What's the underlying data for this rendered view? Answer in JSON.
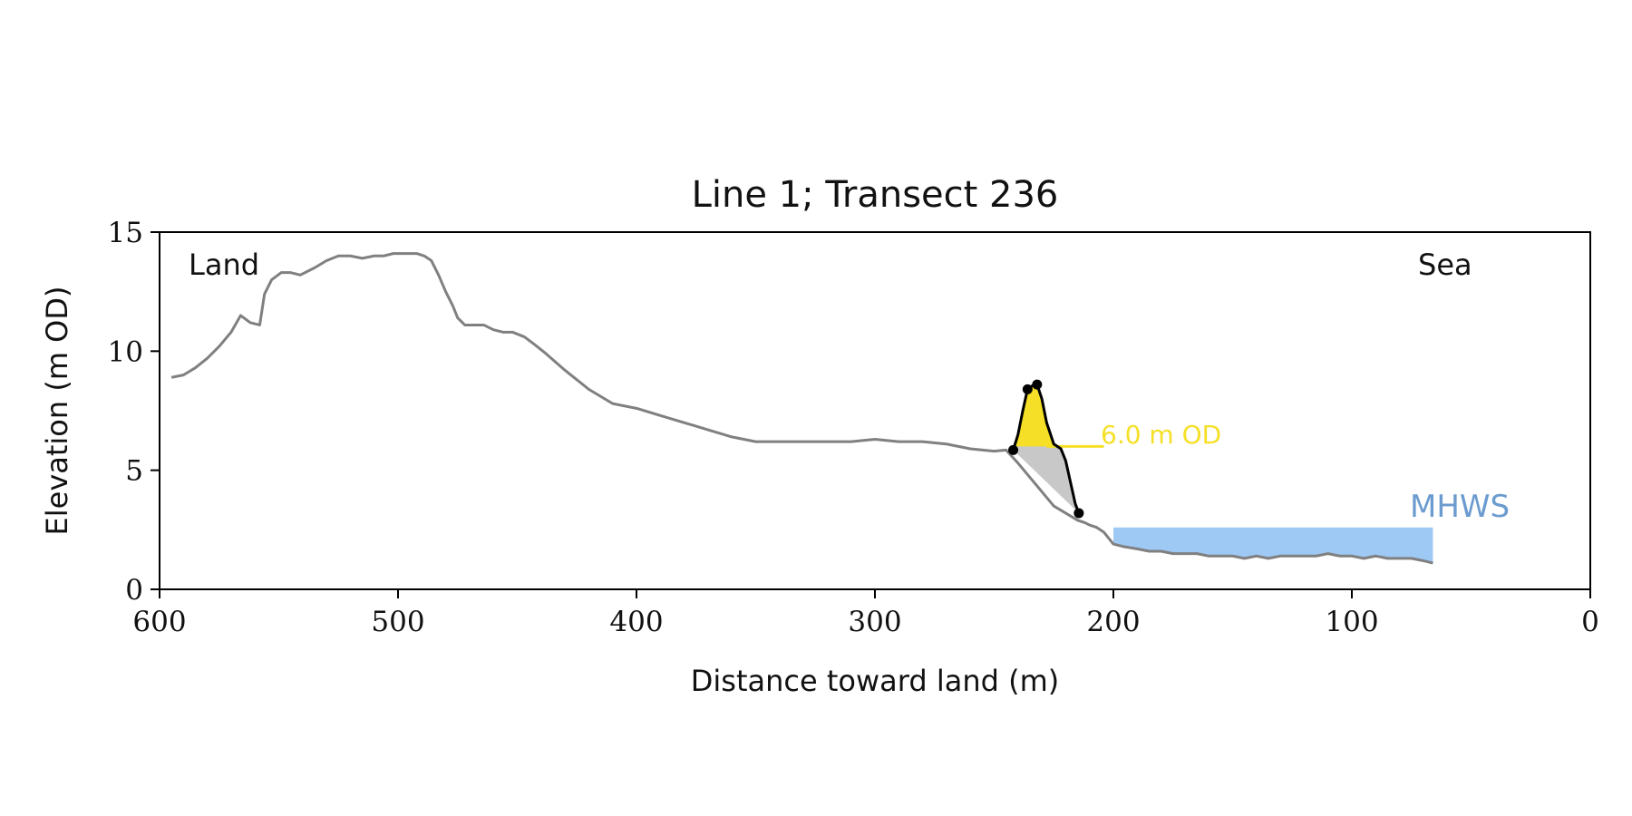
{
  "chart_data": {
    "type": "line",
    "title": "Line 1; Transect 236",
    "xlabel": "Distance toward land (m)",
    "ylabel": "Elevation (m OD)",
    "xlim": [
      600,
      0
    ],
    "ylim": [
      0,
      15
    ],
    "x_ticks": [
      "600",
      "500",
      "400",
      "300",
      "200",
      "100",
      "0"
    ],
    "y_ticks": [
      "0",
      "5",
      "10",
      "15"
    ],
    "x_tick_values": [
      600,
      500,
      400,
      300,
      200,
      100,
      0
    ],
    "y_tick_values": [
      0,
      5,
      10,
      15
    ],
    "grid": false,
    "colors": {
      "profile": "#808080",
      "dune": "#f5e027",
      "dune_base": "#c8c8c8",
      "mhws": "#9ec9f5",
      "mhws_text": "#6b9bcf",
      "od_line": "#f5e027",
      "markers": "#000000"
    },
    "annotations": {
      "land": "Land",
      "sea": "Sea",
      "od_label": "6.0 m OD",
      "mhws_label": "MHWS"
    },
    "threshold": {
      "elevation": 6.0,
      "x_start": 228,
      "x_end": 204
    },
    "mhws": {
      "elevation": 2.6,
      "x_start": 200,
      "x_end": 66
    },
    "profile": {
      "x": [
        595,
        590,
        585,
        580,
        575,
        570,
        566,
        562,
        558,
        556,
        553,
        549,
        545,
        541,
        535,
        530,
        525,
        520,
        515,
        510,
        506,
        502,
        496,
        492,
        489,
        486,
        483,
        480,
        477,
        475,
        472,
        468,
        464,
        460,
        456,
        452,
        447,
        443,
        438,
        430,
        420,
        410,
        405,
        400,
        390,
        380,
        370,
        360,
        350,
        340,
        330,
        320,
        310,
        300,
        290,
        280,
        270,
        260,
        250,
        245,
        240,
        235,
        230,
        225,
        220,
        215,
        212,
        210,
        207,
        204,
        200,
        196,
        190,
        185,
        180,
        175,
        170,
        165,
        160,
        150,
        145,
        140,
        135,
        130,
        120,
        115,
        110,
        105,
        100,
        95,
        90,
        85,
        80,
        75,
        70,
        66
      ],
      "y": [
        8.9,
        9.0,
        9.3,
        9.7,
        10.2,
        10.8,
        11.5,
        11.2,
        11.1,
        12.4,
        13.0,
        13.3,
        13.3,
        13.2,
        13.5,
        13.8,
        14.0,
        14.0,
        13.9,
        14.0,
        14.0,
        14.1,
        14.1,
        14.1,
        14.0,
        13.8,
        13.2,
        12.5,
        11.9,
        11.4,
        11.1,
        11.1,
        11.1,
        10.9,
        10.8,
        10.8,
        10.6,
        10.3,
        9.9,
        9.2,
        8.4,
        7.8,
        7.7,
        7.6,
        7.3,
        7.0,
        6.7,
        6.4,
        6.2,
        6.2,
        6.2,
        6.2,
        6.2,
        6.3,
        6.2,
        6.2,
        6.1,
        5.9,
        5.8,
        5.85,
        5.3,
        4.7,
        4.1,
        3.5,
        3.2,
        2.9,
        2.8,
        2.7,
        2.6,
        2.4,
        1.9,
        1.8,
        1.7,
        1.6,
        1.6,
        1.5,
        1.5,
        1.5,
        1.4,
        1.4,
        1.3,
        1.4,
        1.3,
        1.4,
        1.4,
        1.4,
        1.5,
        1.4,
        1.4,
        1.3,
        1.4,
        1.3,
        1.3,
        1.3,
        1.2,
        1.1
      ]
    },
    "dune_crest": {
      "x": [
        242,
        240,
        238,
        236,
        234,
        232,
        230,
        228,
        225,
        222,
        220,
        218,
        216,
        214.5
      ],
      "y": [
        5.85,
        6.5,
        7.5,
        8.4,
        8.55,
        8.6,
        8.0,
        7.0,
        6.1,
        5.9,
        5.4,
        4.5,
        3.6,
        3.2
      ]
    },
    "markers": {
      "x": [
        242,
        236,
        232,
        214.5
      ],
      "y": [
        5.85,
        8.4,
        8.6,
        3.2
      ]
    }
  }
}
